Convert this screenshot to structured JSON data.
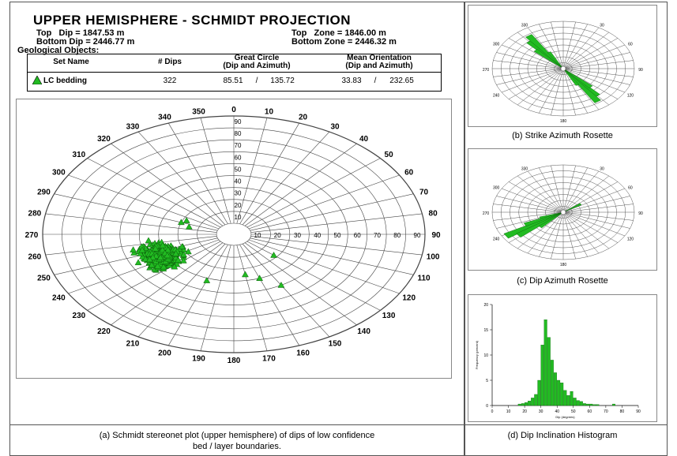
{
  "header": {
    "title": "UPPER HEMISPHERE - SCHMIDT PROJECTION",
    "top_dip": "Top   Dip = 1847.53 m",
    "bottom_dip": "Bottom Dip = 2446.77 m",
    "top_zone": "Top   Zone = 1846.00 m",
    "bottom_zone": "Bottom Zone = 2446.32 m",
    "geological_objects": "Geological Objects:"
  },
  "table": {
    "columns": [
      "Set Name",
      "# Dips",
      "Great Circle",
      "(Dip and Azimuth)",
      "Mean Orientation",
      "(Dip and Azimuth)"
    ],
    "row": {
      "name": "LC bedding",
      "dips": "322",
      "gc_dip": "85.51",
      "gc_az": "135.72",
      "mo_dip": "33.83",
      "mo_az": "232.65",
      "sep": "/"
    }
  },
  "stereonet": {
    "azimuth_labels": [
      "0",
      "10",
      "20",
      "30",
      "40",
      "50",
      "60",
      "70",
      "80",
      "90",
      "100",
      "110",
      "120",
      "130",
      "140",
      "150",
      "160",
      "170",
      "180",
      "190",
      "200",
      "210",
      "220",
      "230",
      "240",
      "250",
      "260",
      "270",
      "280",
      "290",
      "300",
      "310",
      "320",
      "330",
      "340",
      "350"
    ],
    "dip_labels": [
      "90",
      "80",
      "70",
      "60",
      "50",
      "40",
      "30",
      "20",
      "10"
    ],
    "radial_labels": [
      "10",
      "20",
      "30",
      "40",
      "50",
      "60",
      "70",
      "80",
      "90"
    ],
    "marker_color": "#22bb22",
    "cluster_center_azimuth_deg": 245,
    "cluster_center_dip_deg": 33
  },
  "rosettes": {
    "strike": {
      "labels": [
        "330",
        "30",
        "300",
        "60",
        "270",
        "90",
        "240",
        "120",
        "180"
      ],
      "color": "#22bb22"
    },
    "dip": {
      "labels": [
        "330",
        "30",
        "300",
        "60",
        "270",
        "90",
        "240",
        "120",
        "180"
      ],
      "color": "#22bb22"
    }
  },
  "chart_data": {
    "type": "bar",
    "title": "",
    "xlabel": "Dip (degrees)",
    "ylabel": "Frequency (percent)",
    "x_ticks": [
      "0",
      "10",
      "20",
      "30",
      "40",
      "50",
      "60",
      "70",
      "80",
      "90"
    ],
    "y_ticks": [
      "0",
      "5",
      "10",
      "15",
      "20"
    ],
    "xlim": [
      0,
      90
    ],
    "ylim": [
      0,
      20
    ],
    "bin_width": 2,
    "bins": [
      0,
      2,
      4,
      6,
      8,
      10,
      12,
      14,
      16,
      18,
      20,
      22,
      24,
      26,
      28,
      30,
      32,
      34,
      36,
      38,
      40,
      42,
      44,
      46,
      48,
      50,
      52,
      54,
      56,
      58,
      60,
      62,
      64,
      66,
      68,
      70,
      72,
      74,
      76,
      78,
      80,
      82,
      84,
      86,
      88
    ],
    "values": [
      0,
      0,
      0,
      0,
      0,
      0,
      0,
      0,
      0.3,
      0.4,
      0.6,
      0.9,
      1.5,
      2.2,
      5.0,
      12.0,
      17.0,
      13.5,
      9.0,
      6.5,
      5.0,
      4.5,
      3.0,
      2.0,
      2.8,
      1.5,
      1.0,
      0.8,
      0.4,
      0.3,
      0.3,
      0.2,
      0.2,
      0,
      0,
      0,
      0,
      0.3,
      0,
      0,
      0,
      0,
      0,
      0,
      0
    ],
    "color": "#22bb22"
  },
  "captions": {
    "a_line1": "(a) Schmidt stereonet plot (upper hemisphere) of dips of low confidence",
    "a_line2": "bed / layer boundaries.",
    "b": "(b) Strike Azimuth Rosette",
    "c": "(c) Dip Azimuth Rosette",
    "d": "(d) Dip Inclination Histogram"
  }
}
